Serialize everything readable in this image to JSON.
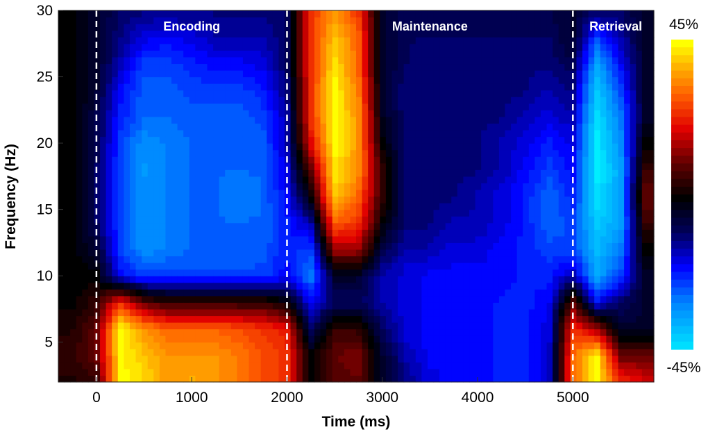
{
  "chart_data": {
    "type": "heatmap",
    "xlabel": "Time (ms)",
    "ylabel": "Frequency (Hz)",
    "xlim": [
      -400,
      5850
    ],
    "ylim": [
      2,
      30
    ],
    "x_ticks": [
      0,
      1000,
      2000,
      3000,
      4000,
      5000
    ],
    "y_ticks": [
      5,
      10,
      15,
      20,
      25,
      30
    ],
    "colorbar": {
      "min": -45,
      "max": 45,
      "min_label": "-45%",
      "max_label": "45%",
      "colors": [
        "#00eeff",
        "#0080ff",
        "#0000ff",
        "#00005a",
        "#000000",
        "#600000",
        "#e00000",
        "#ff6000",
        "#ffb000",
        "#ffff00"
      ]
    },
    "event_lines": [
      0,
      2000,
      5000
    ],
    "phase_labels": [
      {
        "label": "Encoding",
        "time": 1000
      },
      {
        "label": "Maintenance",
        "time": 3500
      },
      {
        "label": "Retrieval",
        "time": 5450
      }
    ],
    "times": [
      -250,
      0,
      250,
      500,
      750,
      1000,
      1250,
      1500,
      1750,
      2000,
      2250,
      2500,
      2750,
      3000,
      3250,
      3500,
      3750,
      4000,
      4250,
      4500,
      4750,
      5000,
      5250,
      5500,
      5750
    ],
    "freqs": [
      30,
      28,
      26,
      24,
      22,
      20,
      18,
      16,
      14,
      12,
      10,
      8,
      6,
      4,
      2
    ],
    "values": [
      [
        0,
        -5,
        -10,
        -12,
        -12,
        -12,
        -12,
        -12,
        -12,
        -10,
        25,
        35,
        25,
        -5,
        -10,
        -10,
        -10,
        -10,
        -10,
        -10,
        -8,
        -5,
        -10,
        -10,
        -5
      ],
      [
        0,
        -5,
        -12,
        -18,
        -20,
        -18,
        -15,
        -15,
        -15,
        -10,
        25,
        40,
        30,
        -5,
        -10,
        -10,
        -10,
        -10,
        -10,
        -10,
        -10,
        -5,
        -25,
        -15,
        -5
      ],
      [
        0,
        -5,
        -15,
        -25,
        -25,
        -22,
        -20,
        -20,
        -18,
        -10,
        25,
        43,
        30,
        -5,
        -10,
        -12,
        -12,
        -12,
        -12,
        -12,
        -12,
        -8,
        -35,
        -20,
        -5
      ],
      [
        0,
        -5,
        -20,
        -27,
        -27,
        -25,
        -25,
        -25,
        -22,
        -12,
        25,
        45,
        33,
        -5,
        -12,
        -12,
        -12,
        -12,
        -12,
        -12,
        -15,
        -12,
        -40,
        -25,
        -5
      ],
      [
        0,
        -8,
        -22,
        -28,
        -28,
        -27,
        -27,
        -27,
        -25,
        -15,
        25,
        45,
        35,
        -3,
        -12,
        -12,
        -12,
        -12,
        -12,
        -15,
        -18,
        -15,
        -43,
        -30,
        -5
      ],
      [
        0,
        -8,
        -25,
        -32,
        -30,
        -28,
        -28,
        -28,
        -27,
        -15,
        20,
        45,
        35,
        0,
        -12,
        -12,
        -12,
        -12,
        -15,
        -18,
        -22,
        -18,
        -45,
        -32,
        0
      ],
      [
        0,
        -10,
        -25,
        -33,
        -30,
        -28,
        -28,
        -28,
        -28,
        -18,
        10,
        43,
        35,
        5,
        -12,
        -12,
        -12,
        -12,
        -15,
        -20,
        -25,
        -20,
        -45,
        -35,
        5
      ],
      [
        0,
        -10,
        -25,
        -32,
        -30,
        -28,
        -28,
        -30,
        -28,
        -20,
        0,
        40,
        30,
        5,
        -12,
        -12,
        -12,
        -15,
        -18,
        -22,
        -28,
        -22,
        -43,
        -35,
        10
      ],
      [
        0,
        -10,
        -25,
        -32,
        -30,
        -28,
        -28,
        -28,
        -28,
        -22,
        -15,
        30,
        25,
        0,
        -12,
        -12,
        -15,
        -15,
        -18,
        -22,
        -28,
        -25,
        -40,
        -35,
        5
      ],
      [
        0,
        -5,
        -25,
        -32,
        -30,
        -28,
        -28,
        -28,
        -27,
        -22,
        -25,
        15,
        15,
        -8,
        -15,
        -15,
        -18,
        -18,
        -20,
        -22,
        -25,
        -25,
        -38,
        -30,
        0
      ],
      [
        0,
        0,
        -20,
        -25,
        -25,
        -25,
        -25,
        -25,
        -25,
        -20,
        -30,
        -5,
        -5,
        -15,
        -18,
        -20,
        -20,
        -20,
        -20,
        -22,
        -22,
        -15,
        -35,
        -25,
        -5
      ],
      [
        0,
        5,
        25,
        10,
        5,
        5,
        5,
        5,
        5,
        0,
        -20,
        -10,
        -10,
        -15,
        -18,
        -20,
        -20,
        -20,
        -22,
        -22,
        -20,
        10,
        -20,
        -10,
        -5
      ],
      [
        3,
        10,
        45,
        35,
        30,
        30,
        30,
        28,
        25,
        22,
        -10,
        5,
        5,
        -10,
        -18,
        -20,
        -20,
        -20,
        -22,
        -22,
        -18,
        25,
        15,
        -5,
        -5
      ],
      [
        5,
        10,
        45,
        40,
        35,
        35,
        35,
        32,
        28,
        25,
        0,
        10,
        12,
        -5,
        -15,
        -20,
        -20,
        -20,
        -22,
        -22,
        -18,
        30,
        45,
        10,
        10
      ],
      [
        3,
        5,
        45,
        42,
        35,
        38,
        35,
        32,
        28,
        25,
        0,
        8,
        10,
        -5,
        -12,
        -18,
        -20,
        -20,
        -22,
        -22,
        -18,
        30,
        45,
        25,
        20
      ]
    ]
  }
}
